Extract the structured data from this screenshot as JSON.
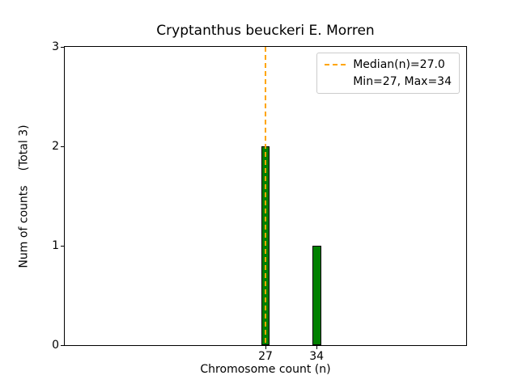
{
  "chart_data": {
    "type": "bar",
    "title": "Cryptanthus beuckeri E. Morren",
    "xlabel": "Chromosome count (n)",
    "ylabel": "Num of counts",
    "total_label": "(Total 3)",
    "x": [
      27,
      34
    ],
    "values": [
      2,
      1
    ],
    "xticks": [
      27,
      34
    ],
    "yticks": [
      0,
      1,
      2,
      3
    ],
    "xlim": [
      -0.5,
      54.5
    ],
    "ylim": [
      0,
      3
    ],
    "bar_width_units": 1.2,
    "bar_color": "#008000",
    "bar_edge_color": "#000000",
    "median_line": {
      "x": 27,
      "color": "#FFA500",
      "style": "dashed"
    },
    "legend": {
      "position": "upper right",
      "entries": [
        {
          "handle": "dashed-line",
          "handle_color": "#FFA500",
          "label": "Median(n)=27.0"
        },
        {
          "handle": "none",
          "handle_color": "",
          "label": "Min=27, Max=34"
        }
      ]
    },
    "grid": false,
    "background": "#ffffff"
  }
}
